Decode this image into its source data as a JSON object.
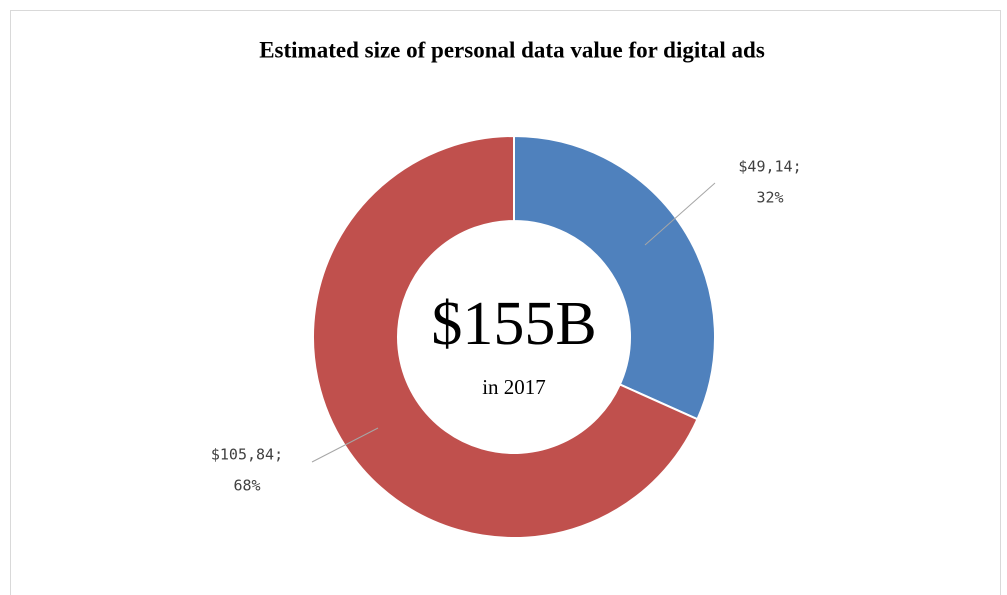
{
  "chart_data": {
    "type": "donut",
    "title": "Estimated size of personal data value for digital ads",
    "categories": [
      null,
      null
    ],
    "values": [
      49.14,
      105.84
    ],
    "value_labels": [
      "$49,14;",
      "$105,84;"
    ],
    "percent_labels": [
      "32%",
      "68%"
    ],
    "colors": [
      "#4f81bd",
      "#c0504d"
    ],
    "annotations": [
      "$155B",
      "in 2017"
    ]
  }
}
